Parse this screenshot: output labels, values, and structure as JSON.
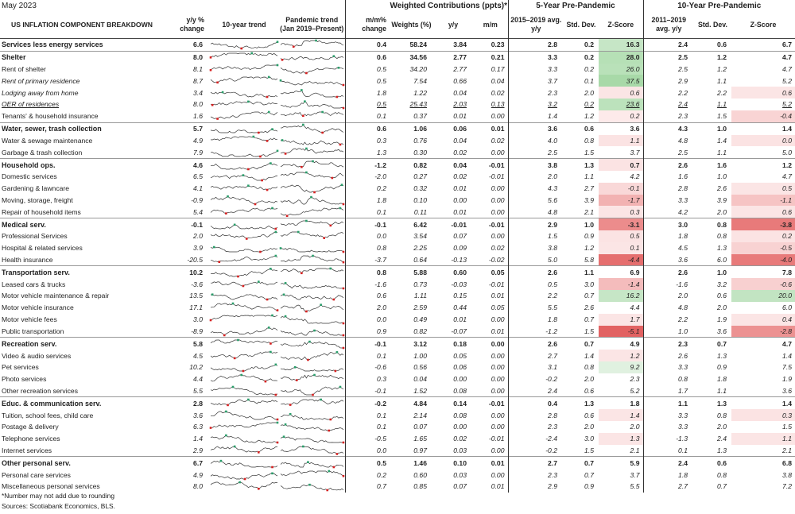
{
  "date": "May 2023",
  "headers": {
    "title": "US INFLATION COMPONENT BREAKDOWN",
    "yy": "y/y % change",
    "trend10": "10-year trend",
    "pandemic": "Pandemic trend (Jan 2019–Present)",
    "mm": "m/m% change",
    "weighted": "Weighted Contributions (ppts)*",
    "weights": "Weights (%)",
    "wyy": "y/y",
    "wmm": "m/m",
    "pre5": "5-Year Pre-Pandemic",
    "avg5": "2015–2019 avg. y/y",
    "std": "Std. Dev.",
    "z": "Z-Score",
    "pre10": "10-Year Pre-Pandemic",
    "avg10": "2011–2019 avg. y/y"
  },
  "rows": [
    {
      "name": "Services less energy services",
      "level": 0,
      "yy": "6.6",
      "mm": "0.4",
      "w": "58.24",
      "wyy": "3.84",
      "wmm": "0.23",
      "a5": "2.8",
      "s5": "0.2",
      "z5": "16.3",
      "a10": "2.4",
      "s10": "0.6",
      "z10": "6.7",
      "c5": "#c6e6c6",
      "c10": "#fff"
    },
    {
      "name": "Shelter",
      "level": 1,
      "yy": "8.0",
      "mm": "0.6",
      "w": "34.56",
      "wyy": "2.77",
      "wmm": "0.21",
      "a5": "3.3",
      "s5": "0.2",
      "z5": "28.0",
      "a10": "2.5",
      "s10": "1.2",
      "z10": "4.7",
      "c5": "#b6e0b6",
      "c10": "#fff"
    },
    {
      "name": "Rent of shelter",
      "level": 2,
      "yy": "8.1",
      "mm": "0.5",
      "w": "34.20",
      "wyy": "2.77",
      "wmm": "0.17",
      "a5": "3.3",
      "s5": "0.2",
      "z5": "26.0",
      "a10": "2.5",
      "s10": "1.2",
      "z10": "4.7",
      "c5": "#b9e1b9",
      "c10": "#fff"
    },
    {
      "name": "Rent of  primary residence",
      "level": 3,
      "yy": "8.7",
      "mm": "0.5",
      "w": "7.54",
      "wyy": "0.66",
      "wmm": "0.04",
      "a5": "3.7",
      "s5": "0.1",
      "z5": "37.5",
      "a10": "2.9",
      "s10": "1.1",
      "z10": "5.2",
      "c5": "#a8d9a8",
      "c10": "#fff"
    },
    {
      "name": "Lodging away from home",
      "level": 3,
      "yy": "3.4",
      "mm": "1.8",
      "w": "1.22",
      "wyy": "0.04",
      "wmm": "0.02",
      "a5": "2.3",
      "s5": "2.0",
      "z5": "0.6",
      "a10": "2.2",
      "s10": "2.2",
      "z10": "0.6",
      "c5": "#fbe5e5",
      "c10": "#fbe5e5"
    },
    {
      "name": "OER of residences",
      "level": 4,
      "yy": "8.0",
      "mm": "0.5",
      "w": "25.43",
      "wyy": "2.03",
      "wmm": "0.13",
      "a5": "3.2",
      "s5": "0.2",
      "z5": "23.6",
      "a10": "2.4",
      "s10": "1.1",
      "z10": "5.2",
      "c5": "#bce2bc",
      "c10": "#fff"
    },
    {
      "name": "Tenants' & household insurance",
      "level": 2,
      "yy": "1.6",
      "mm": "0.1",
      "w": "0.37",
      "wyy": "0.01",
      "wmm": "0.00",
      "a5": "1.4",
      "s5": "1.2",
      "z5": "0.2",
      "a10": "2.3",
      "s10": "1.5",
      "z10": "-0.4",
      "c5": "#fdeaea",
      "c10": "#f9d4d4"
    },
    {
      "name": "Water, sewer, trash collection",
      "level": 1,
      "yy": "5.7",
      "mm": "0.6",
      "w": "1.06",
      "wyy": "0.06",
      "wmm": "0.01",
      "a5": "3.6",
      "s5": "0.6",
      "z5": "3.6",
      "a10": "4.3",
      "s10": "1.0",
      "z10": "1.4",
      "c5": "#fff",
      "c10": "#fff"
    },
    {
      "name": "Water & sewage maintenance",
      "level": 2,
      "yy": "4.9",
      "mm": "0.3",
      "w": "0.76",
      "wyy": "0.04",
      "wmm": "0.02",
      "a5": "4.0",
      "s5": "0.8",
      "z5": "1.1",
      "a10": "4.8",
      "s10": "1.4",
      "z10": "0.0",
      "c5": "#fbe3e3",
      "c10": "#fbe3e3"
    },
    {
      "name": "Garbage & trash collection",
      "level": 2,
      "yy": "7.9",
      "mm": "1.3",
      "w": "0.30",
      "wyy": "0.02",
      "wmm": "0.00",
      "a5": "2.5",
      "s5": "1.5",
      "z5": "3.7",
      "a10": "2.5",
      "s10": "1.1",
      "z10": "5.0",
      "c5": "#fff",
      "c10": "#fff"
    },
    {
      "name": "Household ops.",
      "level": 1,
      "yy": "4.6",
      "mm": "-1.2",
      "w": "0.82",
      "wyy": "0.04",
      "wmm": "-0.01",
      "a5": "3.8",
      "s5": "1.3",
      "z5": "0.7",
      "a10": "2.6",
      "s10": "1.6",
      "z10": "1.2",
      "c5": "#fbe3e3",
      "c10": "#fff"
    },
    {
      "name": "Domestic services",
      "level": 2,
      "yy": "6.5",
      "mm": "-2.0",
      "w": "0.27",
      "wyy": "0.02",
      "wmm": "-0.01",
      "a5": "2.0",
      "s5": "1.1",
      "z5": "4.2",
      "a10": "1.6",
      "s10": "1.0",
      "z10": "4.7",
      "c5": "#fff",
      "c10": "#fff"
    },
    {
      "name": "Gardening & lawncare",
      "level": 2,
      "yy": "4.1",
      "mm": "0.2",
      "w": "0.32",
      "wyy": "0.01",
      "wmm": "0.00",
      "a5": "4.3",
      "s5": "2.7",
      "z5": "-0.1",
      "a10": "2.8",
      "s10": "2.6",
      "z10": "0.5",
      "c5": "#f9d8d8",
      "c10": "#fbe5e5"
    },
    {
      "name": "Moving, storage, freight",
      "level": 2,
      "yy": "-0.9",
      "mm": "1.8",
      "w": "0.10",
      "wyy": "0.00",
      "wmm": "0.00",
      "a5": "5.6",
      "s5": "3.9",
      "z5": "-1.7",
      "a10": "3.3",
      "s10": "3.9",
      "z10": "-1.1",
      "c5": "#f2b2b2",
      "c10": "#f6c4c4"
    },
    {
      "name": "Repair of household items",
      "level": 2,
      "yy": "5.4",
      "mm": "0.1",
      "w": "0.11",
      "wyy": "0.01",
      "wmm": "0.00",
      "a5": "4.8",
      "s5": "2.1",
      "z5": "0.3",
      "a10": "4.2",
      "s10": "2.0",
      "z10": "0.6",
      "c5": "#fbe5e5",
      "c10": "#fbe5e5"
    },
    {
      "name": "Medical serv.",
      "level": 1,
      "yy": "-0.1",
      "mm": "-0.1",
      "w": "6.42",
      "wyy": "-0.01",
      "wmm": "-0.01",
      "a5": "2.9",
      "s5": "1.0",
      "z5": "-3.1",
      "a10": "3.0",
      "s10": "0.8",
      "z10": "-3.8",
      "c5": "#ec8c8c",
      "c10": "#e87a7a"
    },
    {
      "name": "Professional Services",
      "level": 2,
      "yy": "2.0",
      "mm": "0.0",
      "w": "3.54",
      "wyy": "0.07",
      "wmm": "0.00",
      "a5": "1.5",
      "s5": "0.9",
      "z5": "0.5",
      "a10": "1.8",
      "s10": "0.8",
      "z10": "0.2",
      "c5": "#fbe3e3",
      "c10": "#fbe3e3"
    },
    {
      "name": "Hospital & related services",
      "level": 2,
      "yy": "3.9",
      "mm": "0.8",
      "w": "2.25",
      "wyy": "0.09",
      "wmm": "0.02",
      "a5": "3.8",
      "s5": "1.2",
      "z5": "0.1",
      "a10": "4.5",
      "s10": "1.3",
      "z10": "-0.5",
      "c5": "#fbe5e5",
      "c10": "#f8d2d2"
    },
    {
      "name": "Health insurance",
      "level": 2,
      "yy": "-20.5",
      "mm": "-3.7",
      "w": "0.64",
      "wyy": "-0.13",
      "wmm": "-0.02",
      "a5": "5.0",
      "s5": "5.8",
      "z5": "-4.4",
      "a10": "3.6",
      "s10": "6.0",
      "z10": "-4.0",
      "c5": "#e56e6e",
      "c10": "#e87a7a"
    },
    {
      "name": "Transportation serv.",
      "level": 1,
      "yy": "10.2",
      "mm": "0.8",
      "w": "5.88",
      "wyy": "0.60",
      "wmm": "0.05",
      "a5": "2.6",
      "s5": "1.1",
      "z5": "6.9",
      "a10": "2.6",
      "s10": "1.0",
      "z10": "7.8",
      "c5": "#fff",
      "c10": "#fff"
    },
    {
      "name": "Leased cars & trucks",
      "level": 2,
      "yy": "-3.6",
      "mm": "-1.6",
      "w": "0.73",
      "wyy": "-0.03",
      "wmm": "-0.01",
      "a5": "0.5",
      "s5": "3.0",
      "z5": "-1.4",
      "a10": "-1.6",
      "s10": "3.2",
      "z10": "-0.6",
      "c5": "#f4bcbc",
      "c10": "#f8d0d0"
    },
    {
      "name": "Motor vehicle maintenance & repair",
      "level": 2,
      "yy": "13.5",
      "mm": "0.6",
      "w": "1.11",
      "wyy": "0.15",
      "wmm": "0.01",
      "a5": "2.2",
      "s5": "0.7",
      "z5": "16.2",
      "a10": "2.0",
      "s10": "0.6",
      "z10": "20.0",
      "c5": "#c6e6c6",
      "c10": "#c2e4c2"
    },
    {
      "name": "Motor vehicle insurance",
      "level": 2,
      "yy": "17.1",
      "mm": "2.0",
      "w": "2.59",
      "wyy": "0.44",
      "wmm": "0.05",
      "a5": "5.5",
      "s5": "2.6",
      "z5": "4.4",
      "a10": "4.8",
      "s10": "2.0",
      "z10": "6.0",
      "c5": "#fff",
      "c10": "#fff"
    },
    {
      "name": "Motor vehicle fees",
      "level": 2,
      "yy": "3.0",
      "mm": "0.0",
      "w": "0.49",
      "wyy": "0.01",
      "wmm": "0.00",
      "a5": "1.8",
      "s5": "0.7",
      "z5": "1.7",
      "a10": "2.2",
      "s10": "1.9",
      "z10": "0.4",
      "c5": "#fbe5e5",
      "c10": "#fbe5e5"
    },
    {
      "name": "Public transportation",
      "level": 2,
      "yy": "-8.9",
      "mm": "0.9",
      "w": "0.82",
      "wyy": "-0.07",
      "wmm": "0.01",
      "a5": "-1.2",
      "s5": "1.5",
      "z5": "-5.1",
      "a10": "1.0",
      "s10": "3.6",
      "z10": "-2.8",
      "c5": "#e26262",
      "c10": "#ec9292"
    },
    {
      "name": "Recreation serv.",
      "level": 1,
      "yy": "5.8",
      "mm": "-0.1",
      "w": "3.12",
      "wyy": "0.18",
      "wmm": "0.00",
      "a5": "2.6",
      "s5": "0.7",
      "z5": "4.9",
      "a10": "2.3",
      "s10": "0.7",
      "z10": "4.7",
      "c5": "#fff",
      "c10": "#fff"
    },
    {
      "name": "Video & audio services",
      "level": 2,
      "yy": "4.5",
      "mm": "0.1",
      "w": "1.00",
      "wyy": "0.05",
      "wmm": "0.00",
      "a5": "2.7",
      "s5": "1.4",
      "z5": "1.2",
      "a10": "2.6",
      "s10": "1.3",
      "z10": "1.4",
      "c5": "#fbe5e5",
      "c10": "#fff"
    },
    {
      "name": "Pet services",
      "level": 2,
      "yy": "10.2",
      "mm": "-0.6",
      "w": "0.56",
      "wyy": "0.06",
      "wmm": "0.00",
      "a5": "3.1",
      "s5": "0.8",
      "z5": "9.2",
      "a10": "3.3",
      "s10": "0.9",
      "z10": "7.5",
      "c5": "#e0f1e0",
      "c10": "#fff"
    },
    {
      "name": "Photo services",
      "level": 2,
      "yy": "4.4",
      "mm": "0.3",
      "w": "0.04",
      "wyy": "0.00",
      "wmm": "0.00",
      "a5": "-0.2",
      "s5": "2.0",
      "z5": "2.3",
      "a10": "0.8",
      "s10": "1.8",
      "z10": "1.9",
      "c5": "#fff",
      "c10": "#fff"
    },
    {
      "name": "Other recreation services",
      "level": 2,
      "yy": "5.5",
      "mm": "-0.1",
      "w": "1.52",
      "wyy": "0.08",
      "wmm": "0.00",
      "a5": "2.4",
      "s5": "0.6",
      "z5": "5.2",
      "a10": "1.7",
      "s10": "1.1",
      "z10": "3.6",
      "c5": "#fff",
      "c10": "#fff"
    },
    {
      "name": "Educ. & communication serv.",
      "level": 1,
      "yy": "2.8",
      "mm": "-0.2",
      "w": "4.84",
      "wyy": "0.14",
      "wmm": "-0.01",
      "a5": "0.4",
      "s5": "1.3",
      "z5": "1.8",
      "a10": "1.1",
      "s10": "1.3",
      "z10": "1.4",
      "c5": "#fff",
      "c10": "#fff"
    },
    {
      "name": "Tuition, school fees, child care",
      "level": 2,
      "yy": "3.6",
      "mm": "0.1",
      "w": "2.14",
      "wyy": "0.08",
      "wmm": "0.00",
      "a5": "2.8",
      "s5": "0.6",
      "z5": "1.4",
      "a10": "3.3",
      "s10": "0.8",
      "z10": "0.3",
      "c5": "#fbe5e5",
      "c10": "#fbe3e3"
    },
    {
      "name": "Postage & delivery",
      "level": 2,
      "yy": "6.3",
      "mm": "0.1",
      "w": "0.07",
      "wyy": "0.00",
      "wmm": "0.00",
      "a5": "2.3",
      "s5": "2.0",
      "z5": "2.0",
      "a10": "3.3",
      "s10": "2.0",
      "z10": "1.5",
      "c5": "#fff",
      "c10": "#fff"
    },
    {
      "name": "Telephone services",
      "level": 2,
      "yy": "1.4",
      "mm": "-0.5",
      "w": "1.65",
      "wyy": "0.02",
      "wmm": "-0.01",
      "a5": "-2.4",
      "s5": "3.0",
      "z5": "1.3",
      "a10": "-1.3",
      "s10": "2.4",
      "z10": "1.1",
      "c5": "#fbe5e5",
      "c10": "#fbe5e5"
    },
    {
      "name": "Internet services",
      "level": 2,
      "yy": "2.9",
      "mm": "0.0",
      "w": "0.97",
      "wyy": "0.03",
      "wmm": "0.00",
      "a5": "-0.2",
      "s5": "1.5",
      "z5": "2.1",
      "a10": "0.1",
      "s10": "1.3",
      "z10": "2.1",
      "c5": "#fff",
      "c10": "#fff"
    },
    {
      "name": "Other personal serv.",
      "level": 1,
      "yy": "6.7",
      "mm": "0.5",
      "w": "1.46",
      "wyy": "0.10",
      "wmm": "0.01",
      "a5": "2.7",
      "s5": "0.7",
      "z5": "5.9",
      "a10": "2.4",
      "s10": "0.6",
      "z10": "6.8",
      "c5": "#fff",
      "c10": "#fff"
    },
    {
      "name": "Personal care services",
      "level": 2,
      "yy": "4.9",
      "mm": "0.2",
      "w": "0.60",
      "wyy": "0.03",
      "wmm": "0.00",
      "a5": "2.3",
      "s5": "0.7",
      "z5": "3.7",
      "a10": "1.8",
      "s10": "0.8",
      "z10": "3.8",
      "c5": "#fff",
      "c10": "#fff"
    },
    {
      "name": "Miscellaneous personal services",
      "level": 2,
      "yy": "8.0",
      "mm": "0.7",
      "w": "0.85",
      "wyy": "0.07",
      "wmm": "0.01",
      "a5": "2.9",
      "s5": "0.9",
      "z5": "5.5",
      "a10": "2.7",
      "s10": "0.7",
      "z10": "7.2",
      "c5": "#fff",
      "c10": "#fff"
    }
  ],
  "footnote1": "*Number may not add due to rounding",
  "footnote2": "Sources: Scotiabank Economics, BLS."
}
